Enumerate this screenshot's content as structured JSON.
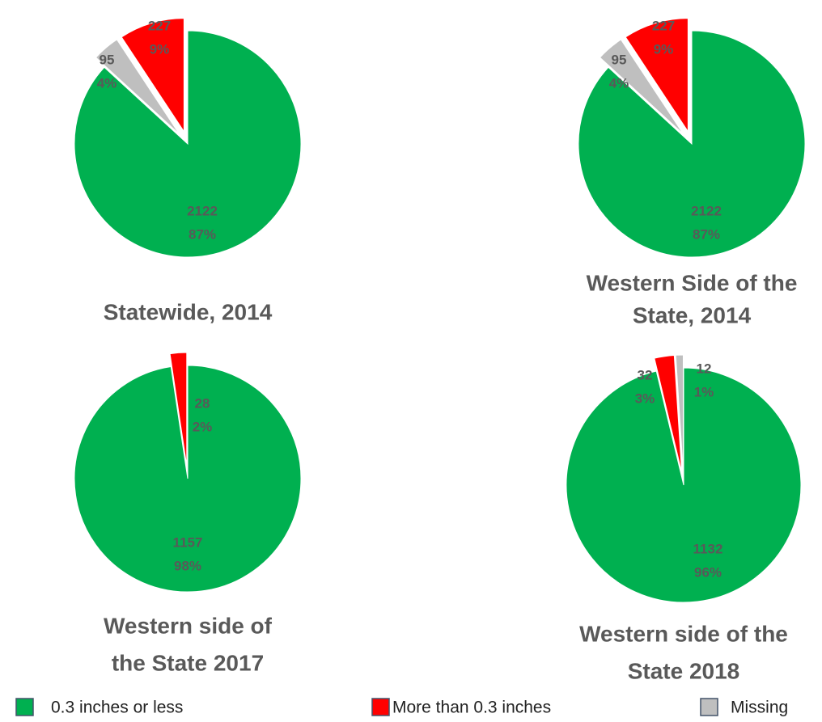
{
  "chart_data": [
    {
      "type": "pie",
      "title": [
        "Statewide, 2014"
      ],
      "values": [
        2122,
        95,
        227
      ],
      "percent_labels": [
        "87%",
        "4%",
        "9%"
      ],
      "colors": [
        "#00b050",
        "#bfbfbf",
        "#ff0000"
      ]
    },
    {
      "type": "pie",
      "title": [
        "Western Side of the",
        "State, 2014"
      ],
      "values": [
        2122,
        95,
        227
      ],
      "percent_labels": [
        "87%",
        "4%",
        "9%"
      ],
      "colors": [
        "#00b050",
        "#bfbfbf",
        "#ff0000"
      ]
    },
    {
      "type": "pie",
      "title": [
        "Western side of",
        "the State 2017"
      ],
      "values": [
        1157,
        28
      ],
      "percent_labels": [
        "98%",
        "2%"
      ],
      "colors": [
        "#00b050",
        "#ff0000"
      ]
    },
    {
      "type": "pie",
      "title": [
        "Western side of the",
        "State 2018"
      ],
      "values": [
        1132,
        32,
        12
      ],
      "percent_labels": [
        "96%",
        "3%",
        "1%"
      ],
      "colors": [
        "#00b050",
        "#ff0000",
        "#bfbfbf"
      ]
    }
  ],
  "legend": [
    {
      "name": "0.3 inches or less",
      "color": "#00b050"
    },
    {
      "name": "More than 0.3 inches",
      "color": "#ff0000"
    },
    {
      "name": "Missing",
      "color": "#bfbfbf"
    }
  ]
}
